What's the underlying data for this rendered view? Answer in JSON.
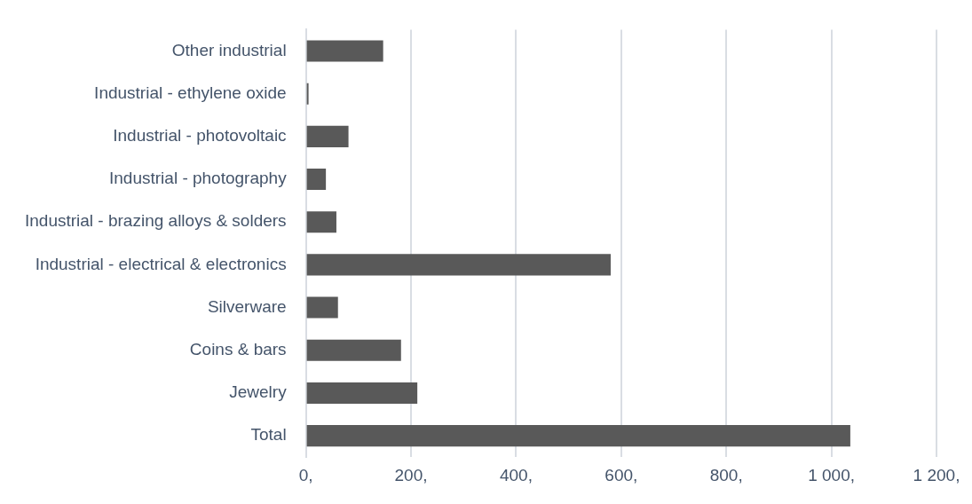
{
  "chart_data": {
    "type": "bar",
    "orientation": "horizontal",
    "categories": [
      "Other industrial",
      "Industrial - ethylene oxide",
      "Industrial - photovoltaic",
      "Industrial - photography",
      "Industrial - brazing alloys & solders",
      "Industrial - electrical & electronics",
      "Silverware",
      "Coins & bars",
      "Jewelry",
      "Total"
    ],
    "values": [
      147,
      5,
      81,
      38,
      58,
      580,
      61,
      181,
      212,
      1036
    ],
    "color": "#595959",
    "xlim": [
      0,
      1200
    ],
    "xticks": [
      {
        "value": 0,
        "label": "0,"
      },
      {
        "value": 200,
        "label": "200,"
      },
      {
        "value": 400,
        "label": "400,"
      },
      {
        "value": 600,
        "label": "600,"
      },
      {
        "value": 800,
        "label": "800,"
      },
      {
        "value": 1000,
        "label": "1 000,"
      },
      {
        "value": 1200,
        "label": "1 200,"
      }
    ],
    "grid": "x",
    "legend": false
  }
}
